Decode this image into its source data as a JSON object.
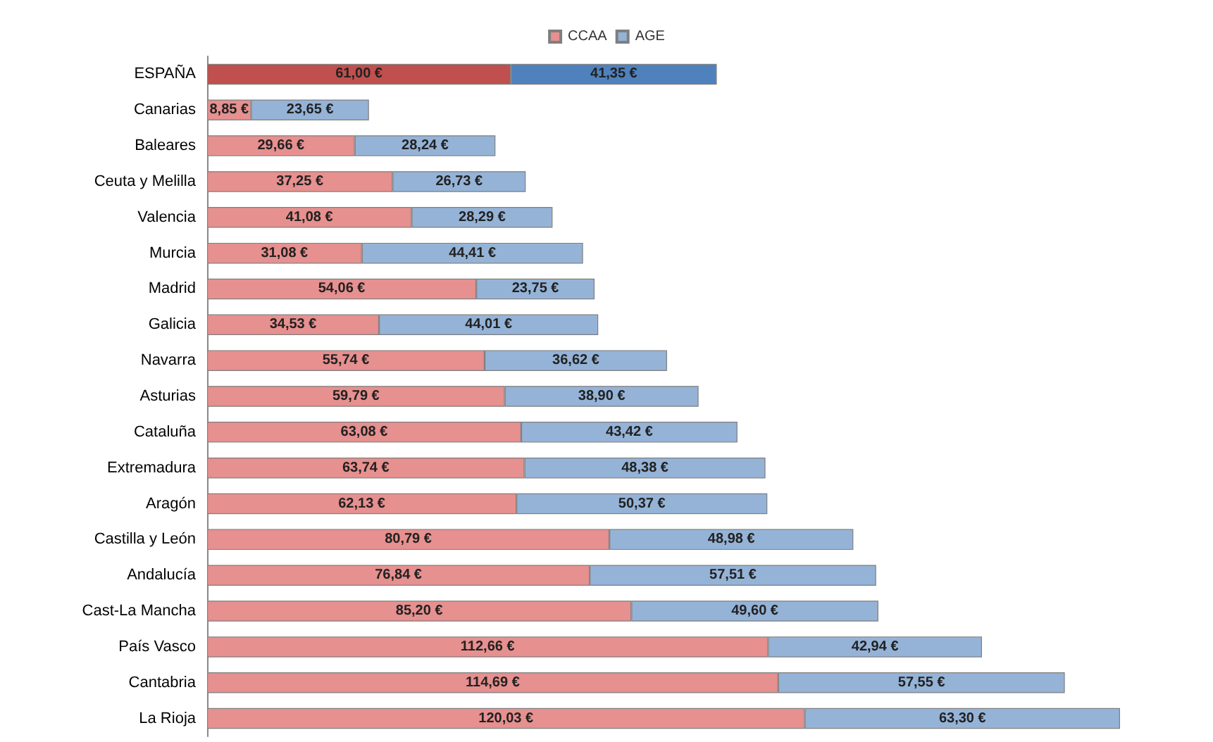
{
  "chart_data": {
    "type": "bar",
    "orientation": "horizontal",
    "stacked": true,
    "legend": "top",
    "categories": [
      "ESPAÑA",
      "Canarias",
      "Baleares",
      "Ceuta y Melilla",
      "Valencia",
      "Murcia",
      "Madrid",
      "Galicia",
      "Navarra",
      "Asturias",
      "Cataluña",
      "Extremadura",
      "Aragón",
      "Castilla y León",
      "Andalucía",
      "Cast-La Mancha",
      "País Vasco",
      "Cantabria",
      "La Rioja"
    ],
    "series": [
      {
        "name": "CCAA",
        "color": "#e6908f",
        "colors": [
          "#c0504d",
          "#e6908f",
          "#e6908f",
          "#e6908f",
          "#e6908f",
          "#e6908f",
          "#e6908f",
          "#e6908f",
          "#e6908f",
          "#e6908f",
          "#e6908f",
          "#e6908f",
          "#e6908f",
          "#e6908f",
          "#e6908f",
          "#e6908f",
          "#e6908f",
          "#e6908f",
          "#e6908f"
        ],
        "values": [
          61.0,
          8.85,
          29.66,
          37.25,
          41.08,
          31.08,
          54.06,
          34.53,
          55.74,
          59.79,
          63.08,
          63.74,
          62.13,
          80.79,
          76.84,
          85.2,
          112.66,
          114.69,
          120.03
        ],
        "value_labels": [
          "61,00 €",
          "8,85 €",
          "29,66 €",
          "37,25 €",
          "41,08 €",
          "31,08 €",
          "54,06 €",
          "34,53 €",
          "55,74 €",
          "59,79 €",
          "63,08 €",
          "63,74 €",
          "62,13 €",
          "80,79 €",
          "76,84 €",
          "85,20 €",
          "112,66 €",
          "114,69 €",
          "120,03 €"
        ]
      },
      {
        "name": "AGE",
        "color": "#95b3d7",
        "colors": [
          "#4f81bd",
          "#95b3d7",
          "#95b3d7",
          "#95b3d7",
          "#95b3d7",
          "#95b3d7",
          "#95b3d7",
          "#95b3d7",
          "#95b3d7",
          "#95b3d7",
          "#95b3d7",
          "#95b3d7",
          "#95b3d7",
          "#95b3d7",
          "#95b3d7",
          "#95b3d7",
          "#95b3d7",
          "#95b3d7",
          "#95b3d7"
        ],
        "values": [
          41.35,
          23.65,
          28.24,
          26.73,
          28.29,
          44.41,
          23.75,
          44.01,
          36.62,
          38.9,
          43.42,
          48.38,
          50.37,
          48.98,
          57.51,
          49.6,
          42.94,
          57.55,
          63.3
        ],
        "value_labels": [
          "41,35 €",
          "23,65 €",
          "28,24 €",
          "26,73 €",
          "28,29 €",
          "44,41 €",
          "23,75 €",
          "44,01 €",
          "36,62 €",
          "38,90 €",
          "43,42 €",
          "48,38 €",
          "50,37 €",
          "48,98 €",
          "57,51 €",
          "49,60 €",
          "42,94 €",
          "57,55 €",
          "63,30 €"
        ]
      }
    ]
  }
}
